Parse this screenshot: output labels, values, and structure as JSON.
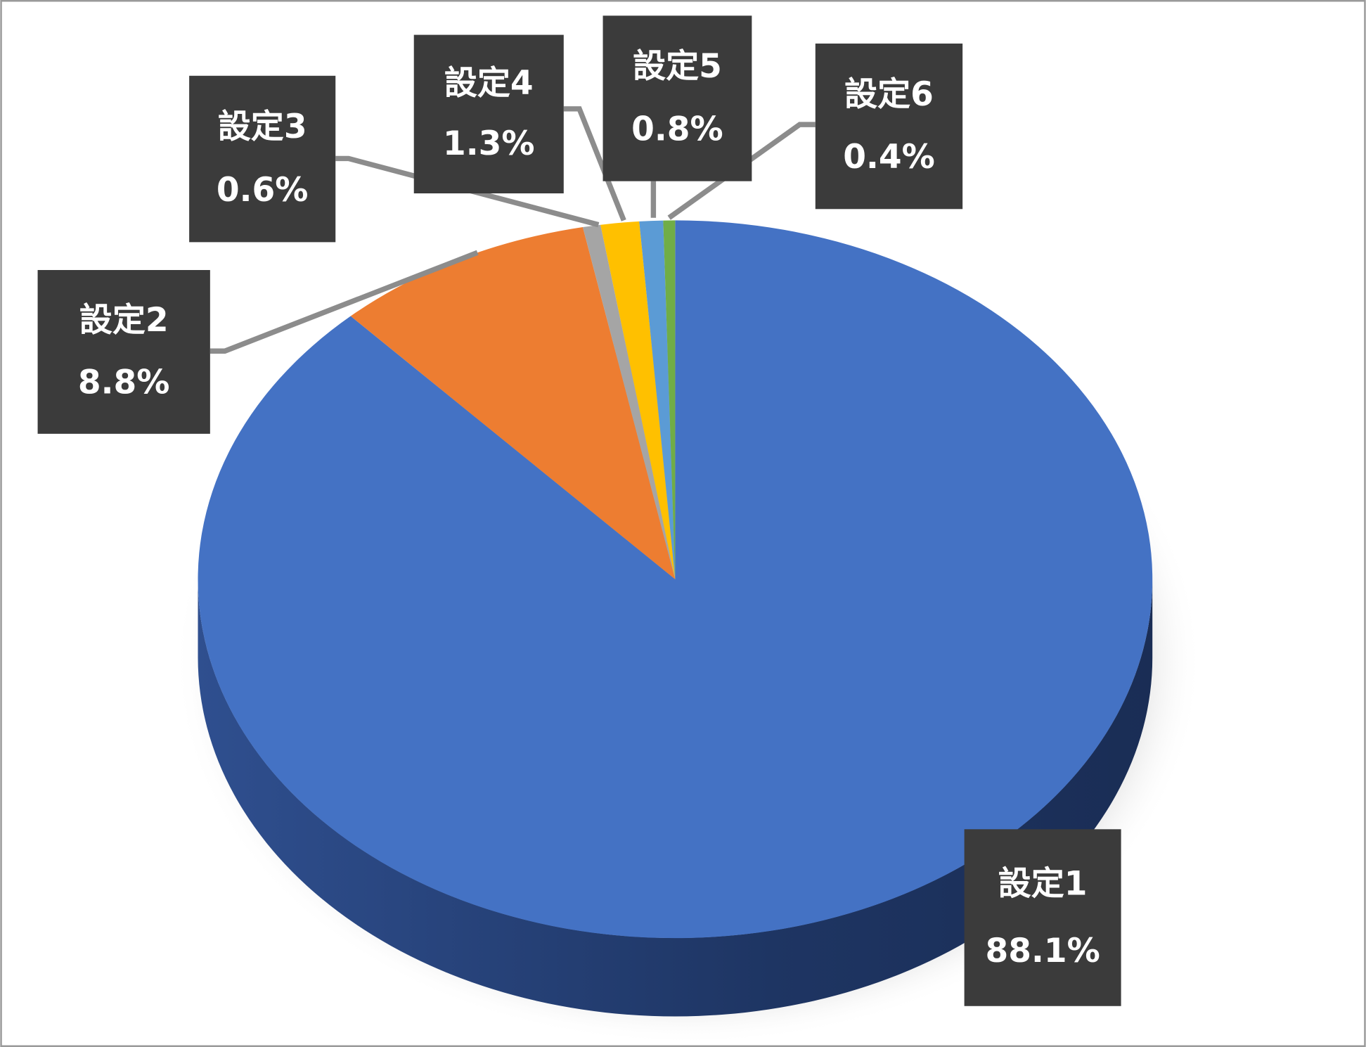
{
  "chart_data": {
    "type": "pie",
    "categories": [
      "設定1",
      "設定2",
      "設定3",
      "設定4",
      "設定5",
      "設定6"
    ],
    "values": [
      88.1,
      8.8,
      0.6,
      1.3,
      0.8,
      0.4
    ],
    "value_labels": [
      "88.1%",
      "8.8%",
      "0.6%",
      "1.3%",
      "0.8%",
      "0.4%"
    ],
    "colors": [
      "#4472c4",
      "#ed7d31",
      "#a5a5a5",
      "#ffc000",
      "#5b9bd5",
      "#70ad47"
    ]
  }
}
